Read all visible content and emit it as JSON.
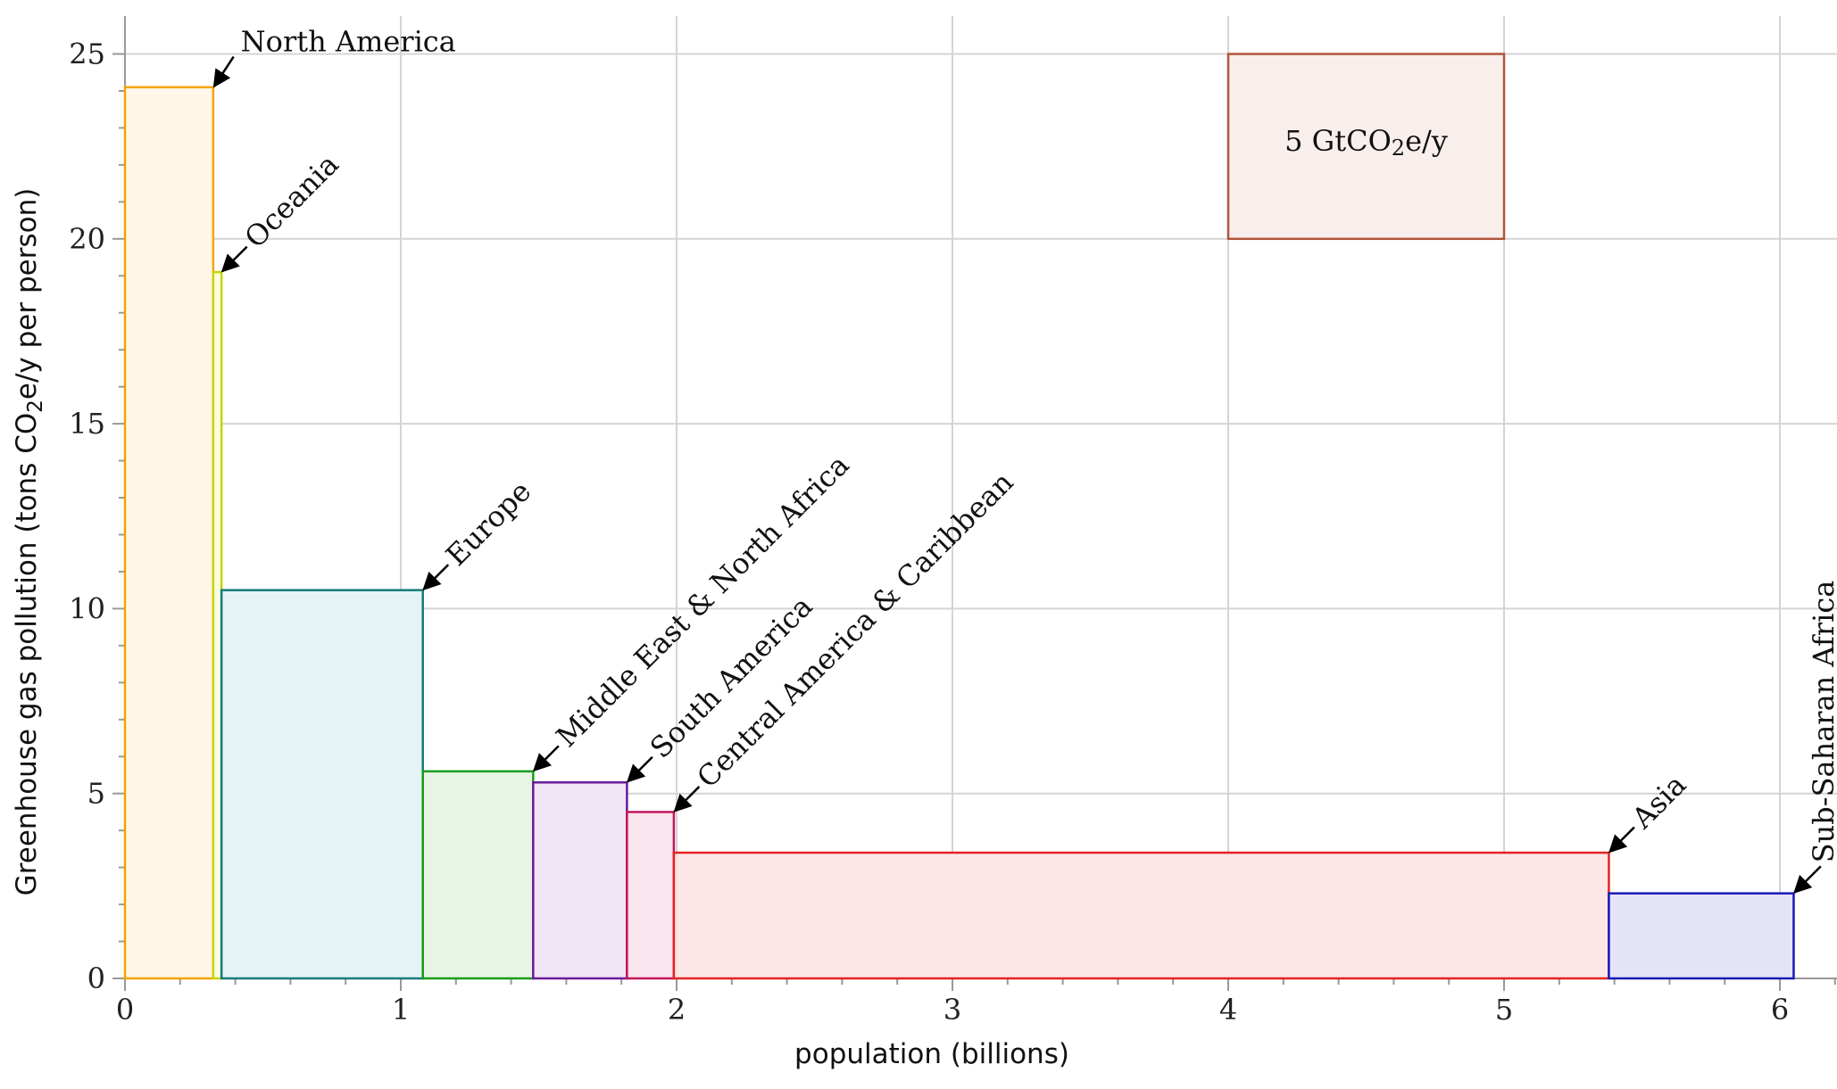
{
  "chart_data": {
    "type": "bar",
    "variant": "variable-width",
    "xlabel": "population (billions)",
    "ylabel": {
      "before": "Greenhouse gas pollution (tons CO",
      "sub": "2",
      "after": "e/y per person)"
    },
    "xlim": [
      0,
      6.2
    ],
    "ylim": [
      0,
      26
    ],
    "xticks": [
      "0",
      "1",
      "2",
      "3",
      "4",
      "5",
      "6"
    ],
    "yticks": [
      "0",
      "5",
      "10",
      "15",
      "20",
      "25"
    ],
    "grid": true,
    "bars": [
      {
        "label": "North America",
        "x0": 0.0,
        "x1": 0.32,
        "value": 24.1,
        "color": "#f5a300",
        "fill": "#fff6e8"
      },
      {
        "label": "Oceania",
        "x0": 0.32,
        "x1": 0.35,
        "value": 19.1,
        "color": "#c8d400",
        "fill": "#fbfde0"
      },
      {
        "label": "Europe",
        "x0": 0.35,
        "x1": 1.08,
        "value": 10.5,
        "color": "#137c7c",
        "fill": "#e4f3f3"
      },
      {
        "label": "Middle East & North Africa",
        "x0": 1.08,
        "x1": 1.48,
        "value": 5.6,
        "color": "#1a9a1a",
        "fill": "#e6f5e6"
      },
      {
        "label": "South America",
        "x0": 1.48,
        "x1": 1.82,
        "value": 5.3,
        "color": "#6a1b9a",
        "fill": "#f1e6f5"
      },
      {
        "label": "Central America & Caribbean",
        "x0": 1.82,
        "x1": 1.99,
        "value": 4.5,
        "color": "#c2185b",
        "fill": "#f9e5ee"
      },
      {
        "label": "Asia",
        "x0": 1.99,
        "x1": 5.38,
        "value": 3.4,
        "color": "#e52222",
        "fill": "#fde6e6"
      },
      {
        "label": "Sub-Saharan Africa",
        "x0": 5.38,
        "x1": 6.05,
        "value": 2.3,
        "color": "#1a1ab4",
        "fill": "#e4e4f8"
      }
    ],
    "legend_box": {
      "x0": 4.0,
      "x1": 5.0,
      "y0": 20,
      "y1": 25,
      "label": {
        "before": "5 GtCO",
        "sub": "2",
        "after": "e/y"
      },
      "color": "#b0553a",
      "fill": "#f8efec"
    }
  }
}
